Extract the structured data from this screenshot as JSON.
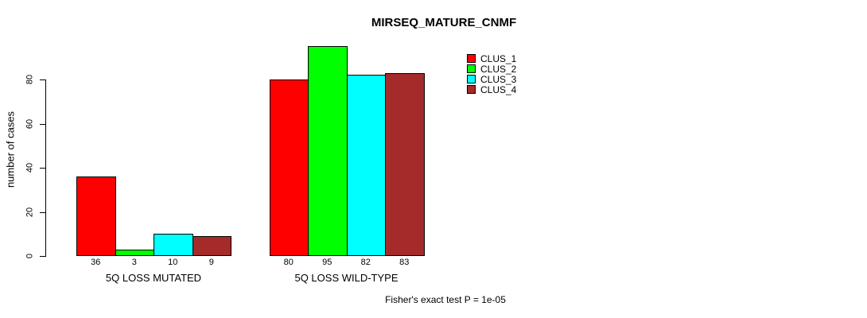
{
  "chart_data": {
    "type": "bar",
    "title": "MIRSEQ_MATURE_CNMF",
    "ylabel": "number of cases",
    "xlabel": "",
    "annotation": "Fisher's exact test P = 1e-05",
    "categories": [
      "5Q LOSS MUTATED",
      "5Q LOSS WILD-TYPE"
    ],
    "series": [
      {
        "name": "CLUS_1",
        "color": "#ff0000",
        "values": [
          36,
          80
        ]
      },
      {
        "name": "CLUS_2",
        "color": "#00ff00",
        "values": [
          3,
          95
        ]
      },
      {
        "name": "CLUS_3",
        "color": "#00ffff",
        "values": [
          10,
          82
        ]
      },
      {
        "name": "CLUS_4",
        "color": "#a52a2a",
        "values": [
          9,
          83
        ]
      }
    ],
    "bar_value_labels": [
      [
        36,
        3,
        10,
        9
      ],
      [
        80,
        95,
        82,
        83
      ]
    ],
    "yticks": [
      0,
      20,
      40,
      60,
      80
    ],
    "ylim": [
      0,
      95
    ],
    "grid": false,
    "legend_position": "inside-top-right",
    "bar_border_color": "#000000",
    "background_color": "#ffffff"
  }
}
